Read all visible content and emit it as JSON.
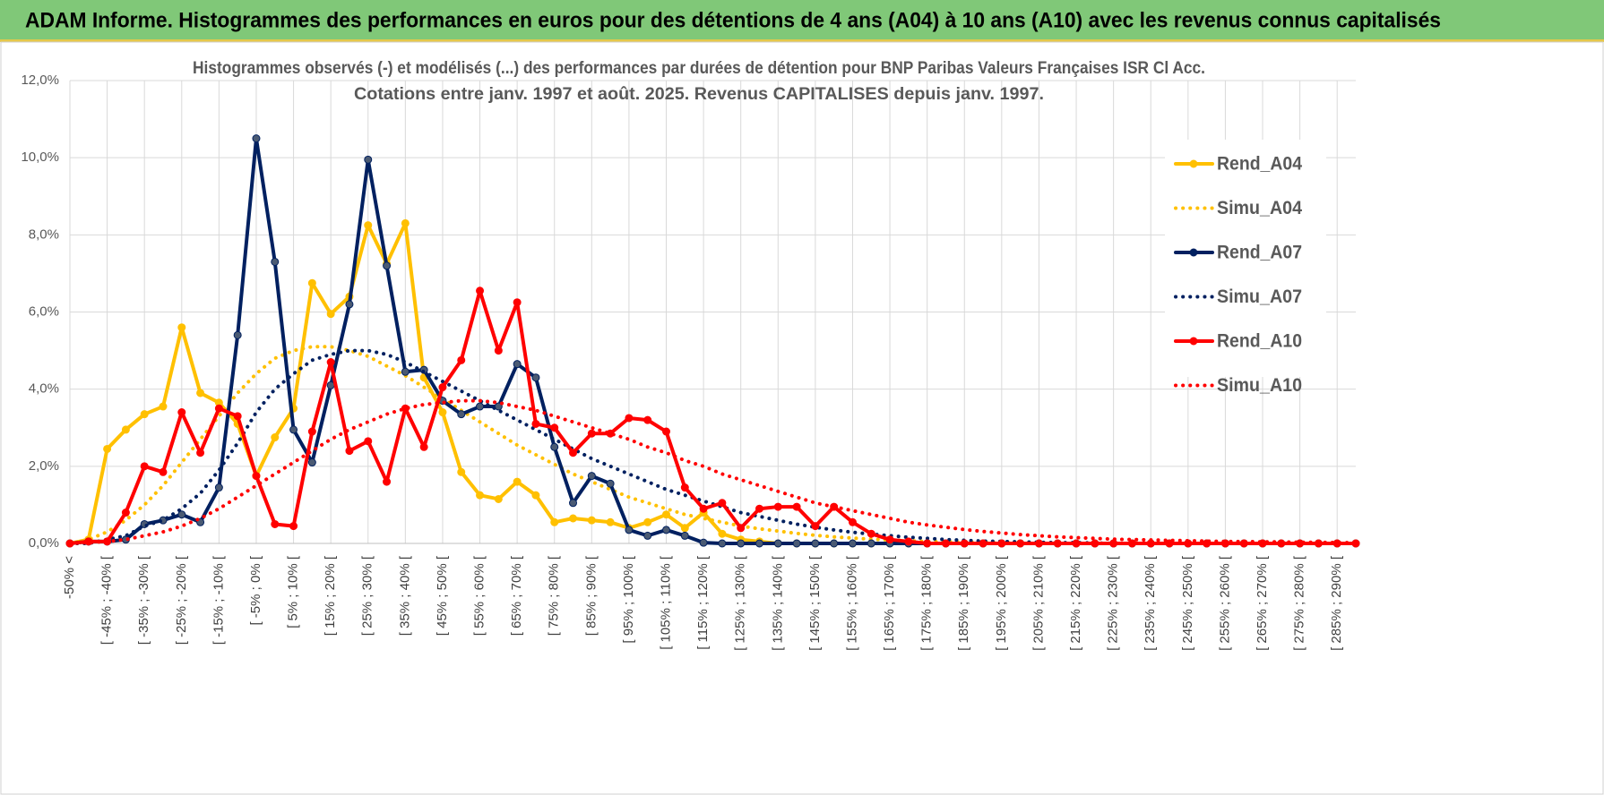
{
  "header": {
    "title": "ADAM Informe. Histogrammes des performances en euros pour des détentions de 4 ans (A04) à 10 ans (A10) avec les revenus connus capitalisés"
  },
  "chart_data": {
    "type": "line",
    "title": "Histogrammes observés (-) et modélisés (...) des performances par durées de détention pour BNP  Paribas Valeurs Françaises ISR Cl Acc.",
    "subtitle": "Cotations entre janv. 1997 et août. 2025. Revenus CAPITALISES depuis janv. 1997.",
    "categories": [
      "-50% <",
      null,
      "[ -45% ; -40% [",
      null,
      "[ -35% ; -30% [",
      null,
      "[ -25% ; -20% [",
      null,
      "[ -15% ; -10% [",
      null,
      "[ -5% ; 0% [",
      null,
      "[ 5% ; 10% [",
      null,
      "[ 15% ; 20% [",
      null,
      "[ 25% ; 30% [",
      null,
      "[ 35% ; 40% [",
      null,
      "[ 45% ; 50% [",
      null,
      "[ 55% ; 60% [",
      null,
      "[ 65% ; 70% [",
      null,
      "[ 75% ; 80% [",
      null,
      "[ 85% ; 90% [",
      null,
      "[ 95% ; 100% [",
      null,
      "[ 105% ; 110% [",
      null,
      "[ 115% ; 120% [",
      null,
      "[ 125% ; 130% [",
      null,
      "[ 135% ; 140% [",
      null,
      "[ 145% ; 150% [",
      null,
      "[ 155% ; 160% [",
      null,
      "[ 165% ; 170% [",
      null,
      "[ 175% ; 180% [",
      null,
      "[ 185% ; 190% [",
      null,
      "[ 195% ; 200% [",
      null,
      "[ 205% ; 210% [",
      null,
      "[ 215% ; 220% [",
      null,
      "[ 225% ; 230% [",
      null,
      "[ 235% ; 240% [",
      null,
      "[ 245% ; 250% [",
      null,
      "[ 255% ; 260% [",
      null,
      "[ 265% ; 270% [",
      null,
      "[ 275% ; 280% [",
      null,
      "[ 285% ; 290% [",
      null
    ],
    "series": [
      {
        "name": "Rend_A04",
        "color": "#ffc000",
        "style": "solid",
        "markers": true,
        "values": [
          0,
          0.1,
          2.45,
          2.95,
          3.35,
          3.55,
          5.6,
          3.9,
          3.65,
          3.1,
          1.75,
          2.75,
          3.5,
          6.75,
          5.95,
          6.4,
          8.25,
          7.25,
          8.3,
          4.3,
          3.4,
          1.85,
          1.25,
          1.15,
          1.6,
          1.25,
          0.55,
          0.65,
          0.6,
          0.55,
          0.4,
          0.55,
          0.75,
          0.4,
          0.8,
          0.25,
          0.1,
          0.05,
          0,
          0,
          0,
          0,
          0,
          0,
          0,
          0,
          0,
          0,
          0,
          0,
          0,
          0,
          0,
          0,
          0,
          0,
          0,
          0,
          0,
          0,
          0,
          0,
          0,
          0,
          0,
          0,
          0,
          0,
          0,
          0
        ]
      },
      {
        "name": "Simu_A04",
        "color": "#ffc000",
        "style": "dotted",
        "markers": false,
        "values": [
          0,
          0.1,
          0.3,
          0.6,
          1.0,
          1.5,
          2.1,
          2.7,
          3.3,
          3.9,
          4.4,
          4.8,
          5.0,
          5.1,
          5.1,
          5.0,
          4.85,
          4.6,
          4.35,
          4.05,
          3.75,
          3.45,
          3.15,
          2.85,
          2.55,
          2.3,
          2.05,
          1.8,
          1.6,
          1.4,
          1.2,
          1.05,
          0.9,
          0.75,
          0.65,
          0.55,
          0.45,
          0.38,
          0.32,
          0.26,
          0.21,
          0.17,
          0.14,
          0.11,
          0.09,
          0.07,
          0.05,
          0.04,
          0.03,
          0.02,
          0.02,
          0.01,
          0,
          0,
          0,
          0,
          0,
          0,
          0,
          0,
          0,
          0,
          0,
          0,
          0,
          0,
          0,
          0,
          0,
          0
        ]
      },
      {
        "name": "Rend_A07",
        "color": "#002060",
        "style": "solid",
        "markers": true,
        "values": [
          0,
          0.05,
          0.05,
          0.1,
          0.5,
          0.6,
          0.75,
          0.55,
          1.45,
          5.4,
          10.5,
          7.3,
          2.95,
          2.1,
          4.1,
          6.2,
          9.95,
          7.2,
          4.45,
          4.5,
          3.7,
          3.35,
          3.55,
          3.55,
          4.65,
          4.3,
          2.5,
          1.05,
          1.75,
          1.55,
          0.35,
          0.2,
          0.35,
          0.2,
          0.02,
          0,
          0,
          0,
          0,
          0,
          0,
          0,
          0,
          0,
          0,
          0,
          0,
          0,
          0,
          0,
          0,
          0,
          0,
          0,
          0,
          0,
          0,
          0,
          0,
          0,
          0,
          0,
          0,
          0,
          0,
          0,
          0,
          0,
          0,
          0
        ]
      },
      {
        "name": "Simu_A07",
        "color": "#002060",
        "style": "dotted",
        "markers": false,
        "values": [
          0,
          0,
          0.1,
          0.2,
          0.45,
          0.6,
          0.9,
          1.3,
          1.9,
          2.6,
          3.4,
          4.0,
          4.4,
          4.75,
          4.9,
          5.0,
          5.0,
          4.9,
          4.7,
          4.45,
          4.2,
          3.95,
          3.7,
          3.45,
          3.2,
          2.95,
          2.7,
          2.45,
          2.2,
          2.0,
          1.8,
          1.6,
          1.4,
          1.25,
          1.1,
          0.95,
          0.8,
          0.7,
          0.6,
          0.5,
          0.42,
          0.35,
          0.29,
          0.24,
          0.2,
          0.16,
          0.13,
          0.1,
          0.08,
          0.06,
          0.05,
          0.04,
          0.03,
          0.02,
          0.02,
          0.01,
          0,
          0,
          0,
          0,
          0,
          0,
          0,
          0,
          0,
          0,
          0,
          0,
          0,
          0
        ]
      },
      {
        "name": "Rend_A10",
        "color": "#ff0000",
        "style": "solid",
        "markers": true,
        "values": [
          0,
          0.05,
          0.05,
          0.8,
          2.0,
          1.85,
          3.4,
          2.35,
          3.5,
          3.3,
          1.75,
          0.5,
          0.45,
          2.9,
          4.7,
          2.4,
          2.65,
          1.6,
          3.5,
          2.5,
          4.05,
          4.75,
          6.55,
          5.0,
          6.25,
          3.1,
          3.0,
          2.35,
          2.85,
          2.85,
          3.25,
          3.2,
          2.9,
          1.45,
          0.9,
          1.05,
          0.4,
          0.9,
          0.95,
          0.95,
          0.45,
          0.95,
          0.55,
          0.25,
          0.1,
          0.05,
          0,
          0,
          0,
          0,
          0,
          0,
          0,
          0,
          0,
          0,
          0,
          0,
          0,
          0,
          0,
          0,
          0,
          0,
          0,
          0,
          0,
          0,
          0,
          0
        ]
      },
      {
        "name": "Simu_A10",
        "color": "#ff0000",
        "style": "dotted",
        "markers": false,
        "values": [
          0,
          0.02,
          0.05,
          0.1,
          0.2,
          0.3,
          0.45,
          0.65,
          0.9,
          1.2,
          1.5,
          1.8,
          2.1,
          2.4,
          2.7,
          2.95,
          3.15,
          3.35,
          3.5,
          3.6,
          3.65,
          3.7,
          3.7,
          3.65,
          3.55,
          3.45,
          3.3,
          3.15,
          3.0,
          2.85,
          2.7,
          2.5,
          2.35,
          2.15,
          2.0,
          1.8,
          1.65,
          1.5,
          1.35,
          1.2,
          1.05,
          0.95,
          0.85,
          0.75,
          0.65,
          0.55,
          0.48,
          0.42,
          0.36,
          0.31,
          0.27,
          0.23,
          0.2,
          0.17,
          0.15,
          0.13,
          0.11,
          0.1,
          0.09,
          0.08,
          0.07,
          0.06,
          0.05,
          0.05,
          0.04,
          0.04,
          0.03,
          0.03,
          0.02,
          0.02
        ]
      }
    ],
    "ylim": [
      0,
      12
    ],
    "yticks": [
      {
        "value": 0,
        "label": "0,0%"
      },
      {
        "value": 2,
        "label": "2,0%"
      },
      {
        "value": 4,
        "label": "4,0%"
      },
      {
        "value": 6,
        "label": "6,0%"
      },
      {
        "value": 8,
        "label": "8,0%"
      },
      {
        "value": 10,
        "label": "10,0%"
      },
      {
        "value": 12,
        "label": "12,0%"
      }
    ],
    "grid": true,
    "legend": "right"
  }
}
